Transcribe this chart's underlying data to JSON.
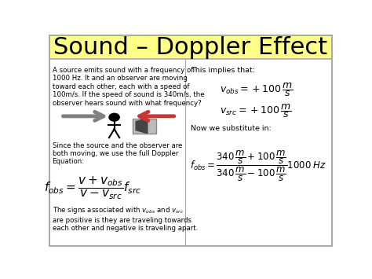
{
  "title": "Sound – Doppler Effect",
  "title_fontsize": 22,
  "title_bg_color": "#FFFF88",
  "bg_color": "#FFFFFF",
  "border_color": "#AAAAAA",
  "left_paragraph": "A source emits sound with a frequency of\n1000 Hz. It and an observer are moving\ntoward each other, each with a speed of\n100m/s. If the speed of sound is 340m/s, the\nobserver hears sound with what frequency?",
  "left_paragraph2": "Since the source and the observer are\nboth moving, we use the full Doppler\nEquation:",
  "left_paragraph3": "The signs associated with $v_{obs}$ and $v_{src}$\nare positive is they are traveling towards\neach other and negative is traveling apart.",
  "right_paragraph1": "This implies that:",
  "right_paragraph2": "Now we substitute in:",
  "formula_left": "$f_{obs} = \\dfrac{v + v_{obs}}{v - v_{src}} f_{src}$",
  "formula_right_num": "$f_{obs} = \\dfrac{340\\,\\dfrac{m}{s} + 100\\,\\dfrac{m}{s}}{340\\,\\dfrac{m}{s} - 100\\,\\dfrac{m}{s}} 1000\\;Hz$",
  "v_obs_eq": "$v_{obs} = +100\\,\\dfrac{m}{s}$",
  "v_src_eq": "$v_{src} = +100\\,\\dfrac{m}{s}$"
}
